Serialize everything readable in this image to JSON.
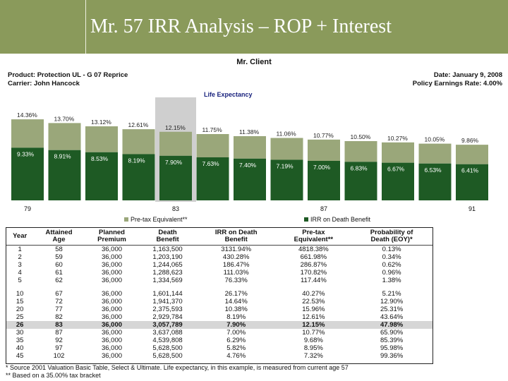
{
  "slide": {
    "title": "Mr. 57 IRR Analysis – ROP + Interest"
  },
  "report": {
    "client": "Mr. Client",
    "product": "Product:  Protection UL - G 07 Reprice",
    "carrier": "Carrier:  John Hancock",
    "date": "Date:  January 9, 2008",
    "policy_rate": "Policy Earnings Rate:  4.00%",
    "life_expectancy_label": "Life Expectancy"
  },
  "chart_data": {
    "type": "bar",
    "categories": [
      "79",
      "",
      "",
      "",
      "83",
      "",
      "",
      "",
      "87",
      "",
      "",
      "",
      "91"
    ],
    "series": [
      {
        "name": "Pre-tax Equivalent**",
        "values": [
          14.36,
          13.7,
          13.12,
          12.61,
          12.15,
          11.75,
          11.38,
          11.06,
          10.77,
          10.5,
          10.27,
          10.05,
          9.86
        ]
      },
      {
        "name": "IRR on Death Benefit",
        "values": [
          9.33,
          8.91,
          8.53,
          8.19,
          7.9,
          7.63,
          7.4,
          7.19,
          7.0,
          6.83,
          6.67,
          6.53,
          6.41
        ]
      }
    ],
    "top_labels": [
      "14.36%",
      "13.70%",
      "13.12%",
      "12.61%",
      "12.15%",
      "11.75%",
      "11.38%",
      "11.06%",
      "10.77%",
      "10.50%",
      "10.27%",
      "10.05%",
      "9.86%"
    ],
    "inner_labels": [
      "9.33%",
      "8.91%",
      "8.53%",
      "8.19%",
      "7.90%",
      "7.63%",
      "7.40%",
      "7.19%",
      "7.00%",
      "6.83%",
      "6.67%",
      "6.53%",
      "6.41%"
    ],
    "highlight_index": 4,
    "legend": [
      "Pre-tax Equivalent**",
      "IRR on Death Benefit"
    ],
    "ylim": [
      0,
      16
    ],
    "grid": false,
    "legend_position": "bottom",
    "colors": {
      "pretax": "#9aa77a",
      "irr": "#1e5a24",
      "highlight": "#cfcfcf"
    }
  },
  "table": {
    "headers": [
      [
        "",
        "Year"
      ],
      [
        "Attained",
        "Age"
      ],
      [
        "Planned",
        "Premium"
      ],
      [
        "Death",
        "Benefit"
      ],
      [
        "IRR on Death",
        "Benefit"
      ],
      [
        "Pre-tax",
        "Equivalent**"
      ],
      [
        "Probability of",
        "Death (EOY)*"
      ]
    ],
    "rows": [
      [
        "1",
        "58",
        "36,000",
        "1,163,500",
        "3131.94%",
        "4818.38%",
        "0.13%"
      ],
      [
        "2",
        "59",
        "36,000",
        "1,203,190",
        "430.28%",
        "661.98%",
        "0.34%"
      ],
      [
        "3",
        "60",
        "36,000",
        "1,244,065",
        "186.47%",
        "286.87%",
        "0.62%"
      ],
      [
        "4",
        "61",
        "36,000",
        "1,288,623",
        "111.03%",
        "170.82%",
        "0.96%"
      ],
      [
        "5",
        "62",
        "36,000",
        "1,334,569",
        "76.33%",
        "117.44%",
        "1.38%"
      ],
      [
        "10",
        "67",
        "36,000",
        "1,601,144",
        "26.17%",
        "40.27%",
        "5.21%"
      ],
      [
        "15",
        "72",
        "36,000",
        "1,941,370",
        "14.64%",
        "22.53%",
        "12.90%"
      ],
      [
        "20",
        "77",
        "36,000",
        "2,375,593",
        "10.38%",
        "15.96%",
        "25.31%"
      ],
      [
        "25",
        "82",
        "36,000",
        "2,929,784",
        "8.19%",
        "12.61%",
        "43.64%"
      ],
      [
        "26",
        "83",
        "36,000",
        "3,057,789",
        "7.90%",
        "12.15%",
        "47.98%"
      ],
      [
        "30",
        "87",
        "36,000",
        "3,637,088",
        "7.00%",
        "10.77%",
        "65.90%"
      ],
      [
        "35",
        "92",
        "36,000",
        "4,539,808",
        "6.29%",
        "9.68%",
        "85.39%"
      ],
      [
        "40",
        "97",
        "36,000",
        "5,628,500",
        "5.82%",
        "8.95%",
        "95.98%"
      ],
      [
        "45",
        "102",
        "36,000",
        "5,628,500",
        "4.76%",
        "7.32%",
        "99.36%"
      ]
    ],
    "highlight_row": 9,
    "gap_after": 4
  },
  "footnotes": {
    "line1": "* Source 2001 Valuation Basic Table, Select & Ultimate.  Life expectancy, in this example, is measured from current age 57",
    "line2": "** Based on a 35.00% tax bracket"
  }
}
